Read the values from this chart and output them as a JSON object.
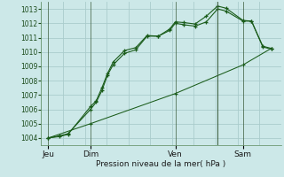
{
  "bg_color": "#cce8e8",
  "grid_color": "#aacccc",
  "line_color": "#1a5c1a",
  "marker_color": "#1a5c1a",
  "xlabel_text": "Pression niveau de la mer( hPa )",
  "ylim": [
    1003.5,
    1013.5
  ],
  "yticks": [
    1004,
    1005,
    1006,
    1007,
    1008,
    1009,
    1010,
    1011,
    1012,
    1013
  ],
  "day_labels": [
    "Jeu",
    "Dim",
    "Ven",
    "Sam"
  ],
  "day_positions": [
    0,
    30,
    90,
    138
  ],
  "xlim": [
    -5,
    165
  ],
  "series1_x": [
    0,
    8,
    14,
    30,
    34,
    38,
    42,
    46,
    54,
    62,
    70,
    78,
    86,
    90,
    96,
    104,
    112,
    120,
    126,
    138,
    144,
    152,
    158
  ],
  "series1_y": [
    1004.0,
    1004.15,
    1004.3,
    1006.0,
    1006.5,
    1007.3,
    1008.4,
    1009.1,
    1009.9,
    1010.15,
    1011.1,
    1011.1,
    1011.5,
    1012.0,
    1011.9,
    1011.8,
    1012.1,
    1013.0,
    1012.85,
    1012.15,
    1012.15,
    1010.35,
    1010.2
  ],
  "series2_x": [
    0,
    8,
    14,
    30,
    34,
    38,
    42,
    46,
    54,
    62,
    70,
    78,
    86,
    90,
    96,
    104,
    112,
    120,
    126,
    138,
    144,
    152,
    158
  ],
  "series2_y": [
    1004.0,
    1004.1,
    1004.25,
    1006.2,
    1006.6,
    1007.5,
    1008.5,
    1009.3,
    1010.1,
    1010.3,
    1011.15,
    1011.1,
    1011.6,
    1012.1,
    1012.05,
    1011.95,
    1012.5,
    1013.2,
    1013.05,
    1012.2,
    1012.15,
    1010.4,
    1010.25
  ],
  "series3_x": [
    0,
    30,
    90,
    138,
    158
  ],
  "series3_y": [
    1004.0,
    1005.0,
    1007.1,
    1009.1,
    1010.25
  ],
  "vline_x": 120
}
